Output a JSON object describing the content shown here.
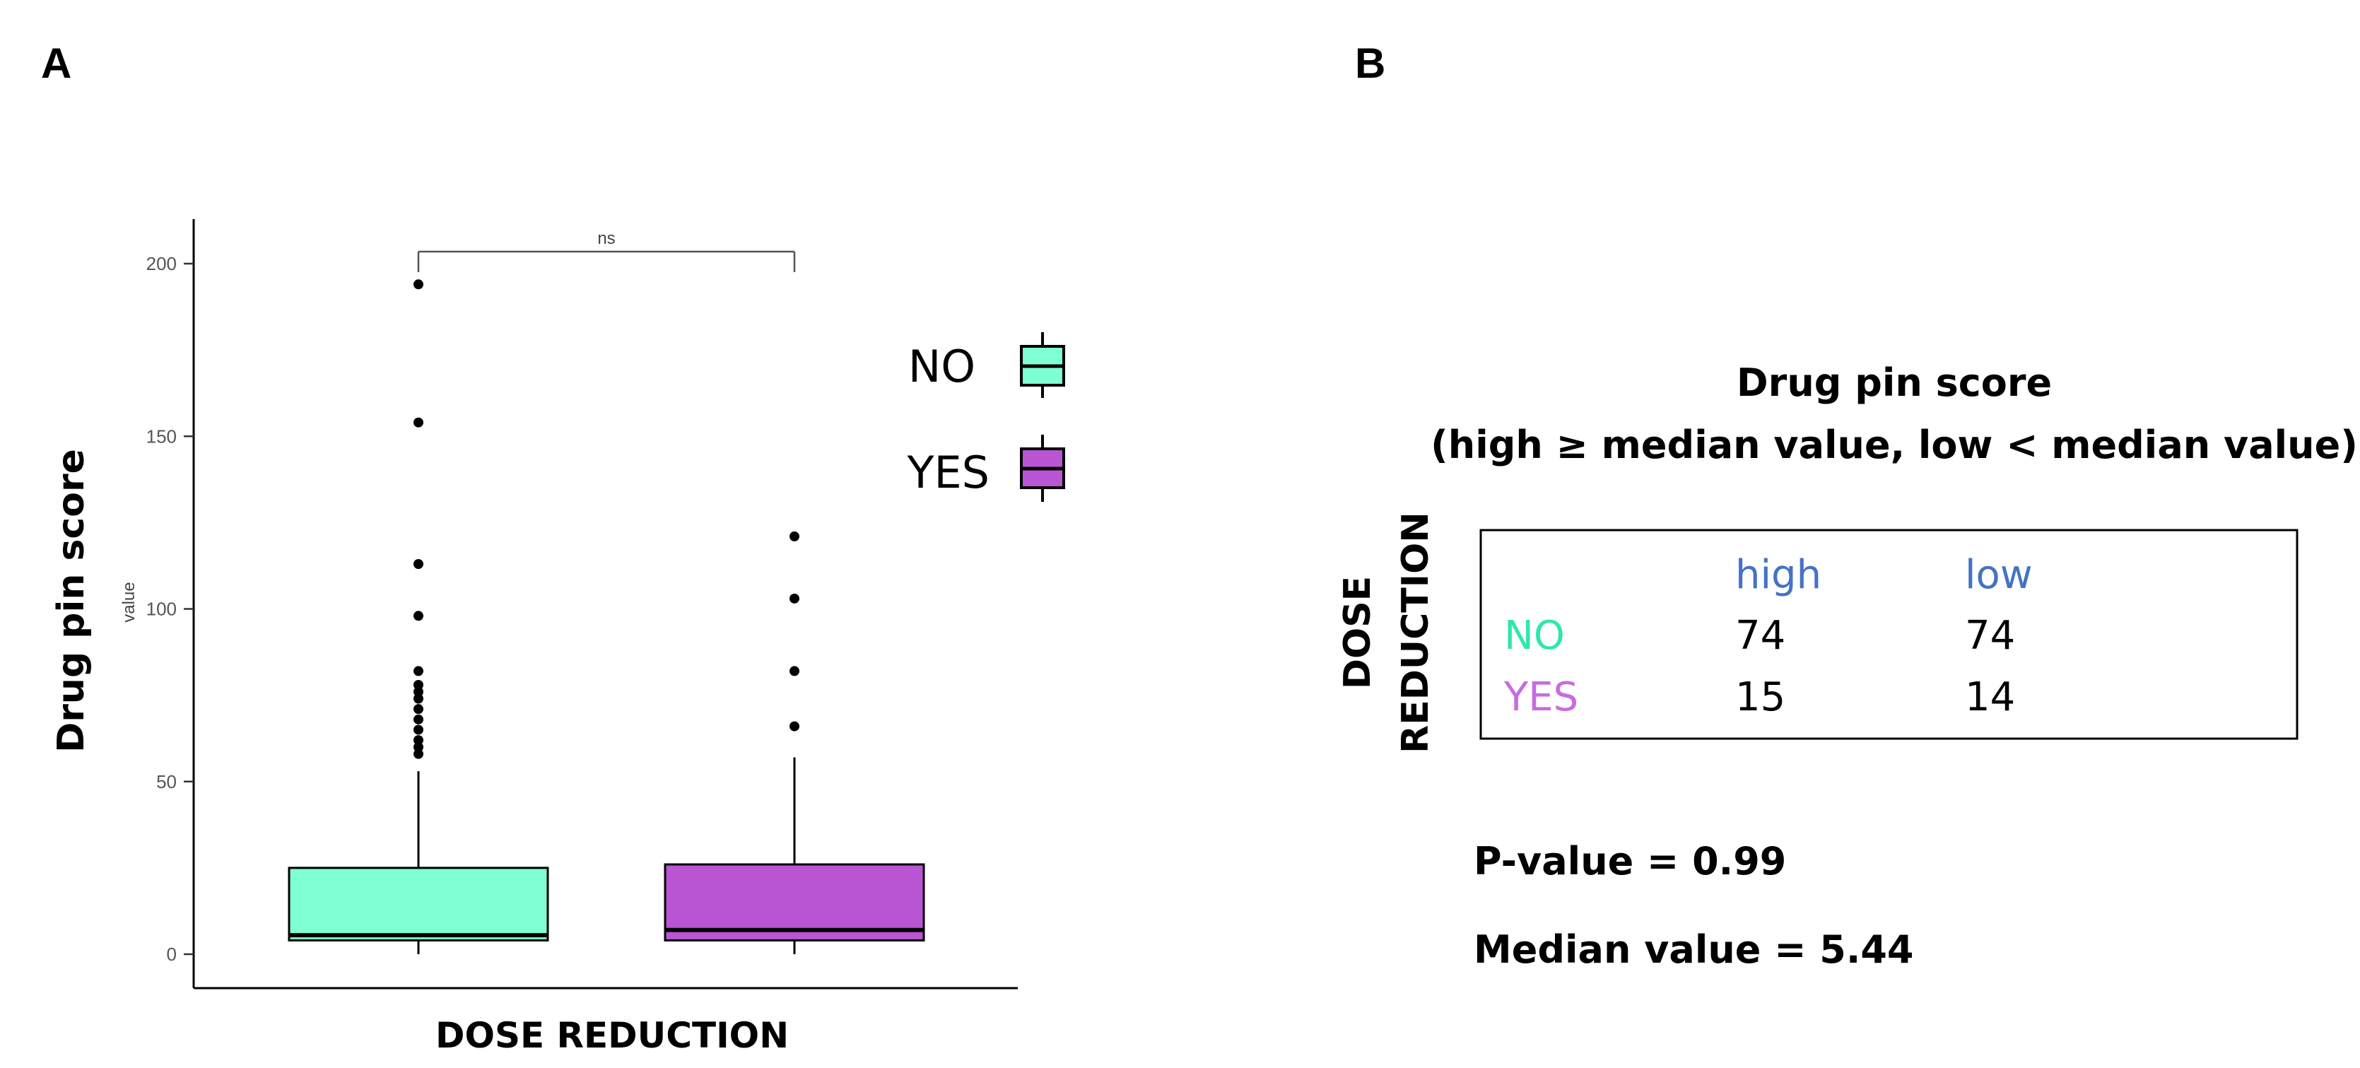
{
  "panels": {
    "a_label": "A",
    "b_label": "B"
  },
  "colors": {
    "no": "#7fffd4",
    "yes": "#ba55d3",
    "header_blue": "#4472c4",
    "no_text": "#2ee8a8",
    "yes_text": "#c86be0"
  },
  "chart_data": [
    {
      "type": "box",
      "panel": "A",
      "title": "",
      "xlabel": "DOSE REDUCTION",
      "ylabel": "Drug pin score",
      "ylabel_small": "value",
      "ylim": [
        -10,
        205
      ],
      "yticks": [
        0,
        50,
        100,
        150,
        200
      ],
      "significance": "ns",
      "legend": {
        "position": "right",
        "entries": [
          "NO",
          "YES"
        ]
      },
      "series": [
        {
          "name": "NO",
          "whisker_low": 0,
          "q1": 4,
          "median": 5.5,
          "q3": 25,
          "whisker_high": 53,
          "outliers": [
            58,
            60,
            62,
            65,
            68,
            71,
            74,
            76,
            78,
            82,
            98,
            113,
            154,
            194
          ]
        },
        {
          "name": "YES",
          "whisker_low": 0,
          "q1": 4,
          "median": 7,
          "q3": 26,
          "whisker_high": 57,
          "outliers": [
            66,
            82,
            103,
            121
          ]
        }
      ]
    },
    {
      "type": "table",
      "panel": "B",
      "title_line1": "Drug pin score",
      "title_line2": "(high ≥ median value, low < median value)",
      "row_axis_label_1": "DOSE",
      "row_axis_label_2": "REDUCTION",
      "columns": [
        "high",
        "low"
      ],
      "rows": [
        {
          "label": "NO",
          "values": [
            "74",
            "74"
          ]
        },
        {
          "label": "YES",
          "values": [
            "15",
            "14"
          ]
        }
      ],
      "pvalue_text": "P-value = 0.99",
      "median_text": "Median value = 5.44"
    }
  ]
}
